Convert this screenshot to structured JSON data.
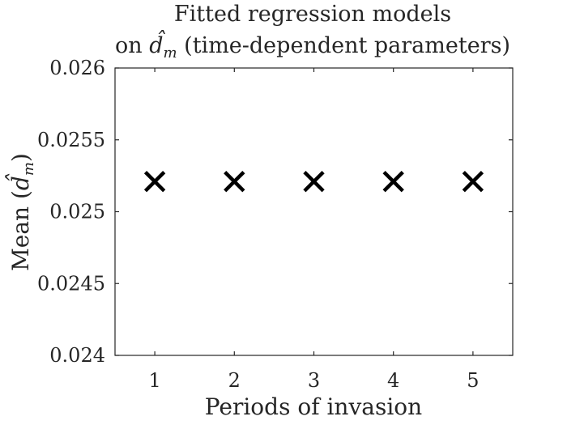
{
  "chart_data": {
    "type": "scatter",
    "title_line1": "Fitted regression models",
    "title_line2_prefix": "on ",
    "title_line2_symbol": "d̂",
    "title_line2_subscript": "m",
    "title_line2_suffix": " (time-dependent parameters)",
    "xlabel": "Periods of invasion",
    "ylabel_prefix": "Mean (",
    "ylabel_symbol": "d̂",
    "ylabel_subscript": "m",
    "ylabel_suffix": ")",
    "xlim": [
      0.5,
      5.5
    ],
    "ylim": [
      0.024,
      0.026
    ],
    "xticks": [
      1,
      2,
      3,
      4,
      5
    ],
    "xtick_labels": [
      "1",
      "2",
      "3",
      "4",
      "5"
    ],
    "yticks": [
      0.024,
      0.0245,
      0.025,
      0.0255,
      0.026
    ],
    "ytick_labels": [
      "0.024",
      "0.0245",
      "0.025",
      "0.0255",
      "0.026"
    ],
    "marker": "x",
    "marker_color": "#000000",
    "grid": false,
    "x": [
      1,
      2,
      3,
      4,
      5
    ],
    "y": [
      0.02521,
      0.02521,
      0.02521,
      0.02521,
      0.02521
    ]
  }
}
